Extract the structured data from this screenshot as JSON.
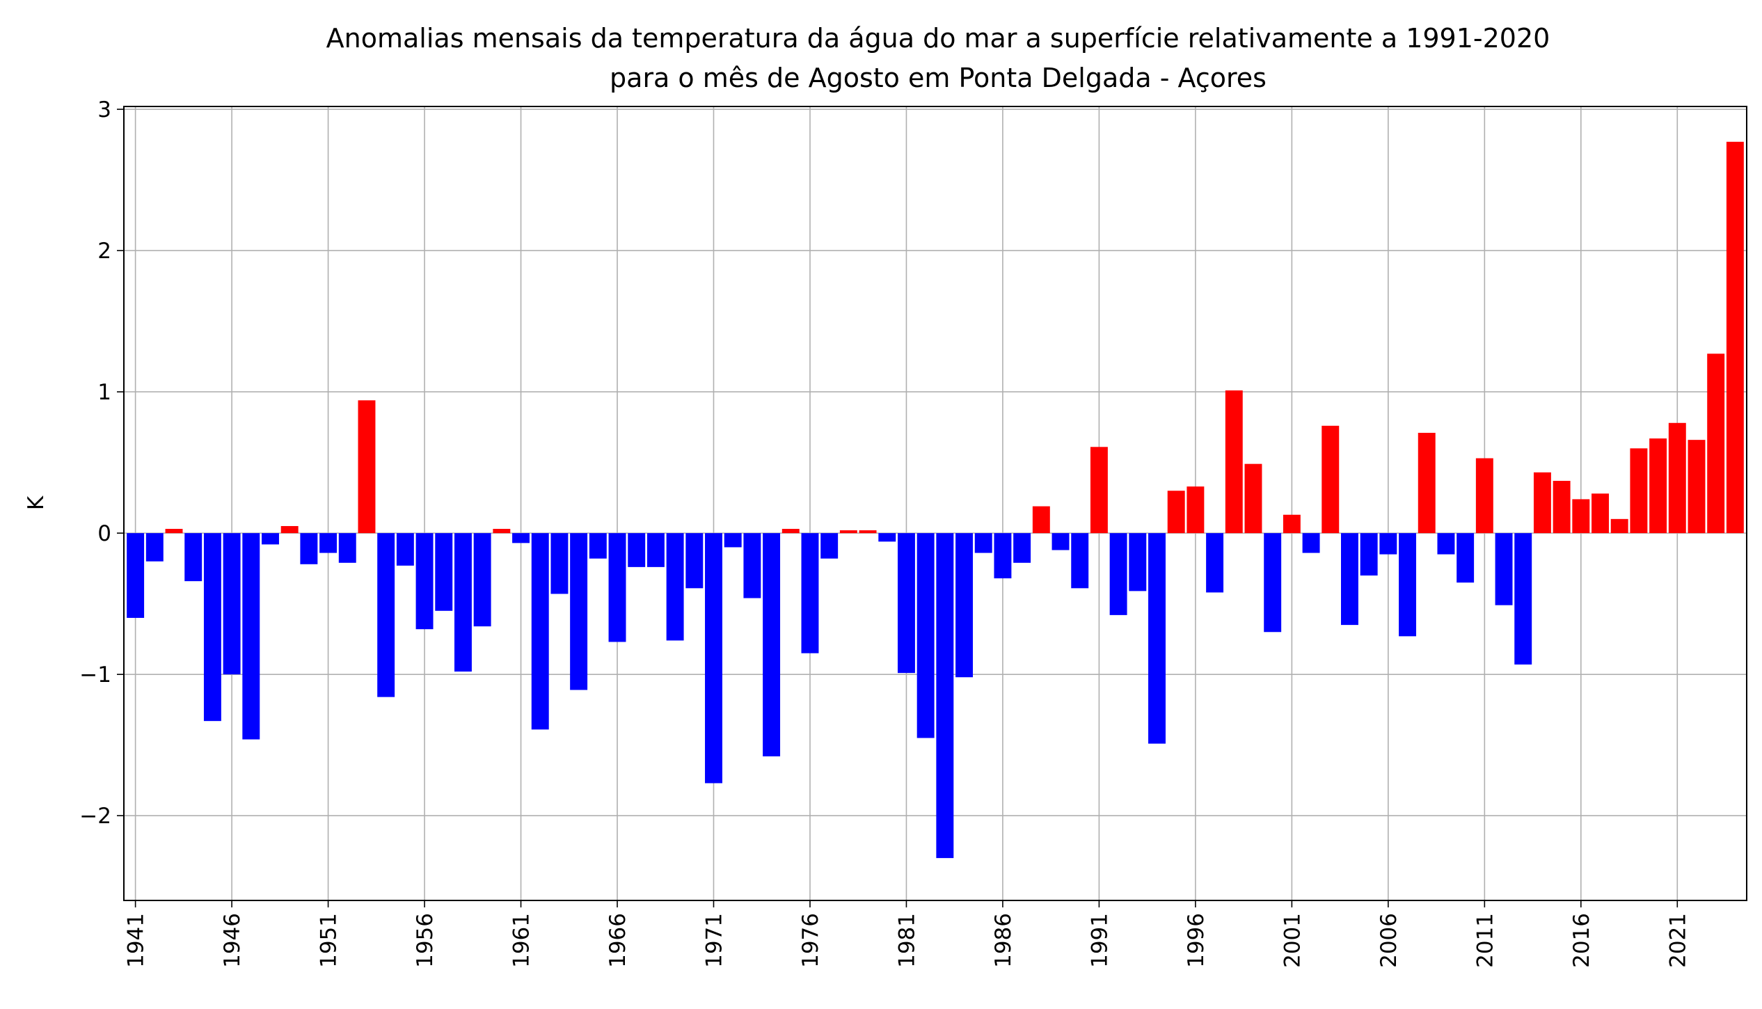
{
  "chart_data": {
    "type": "bar",
    "title": "Anomalias mensais da temperatura da água do mar a superfície relativamente a 1991-2020",
    "subtitle": "para o mês de Agosto em Ponta Delgada - Açores",
    "xlabel": "",
    "ylabel": "K",
    "ylim": [
      -2.6,
      3.02
    ],
    "xlim": [
      1940.4,
      2024.6
    ],
    "grid": true,
    "y_ticks": [
      -2,
      -1,
      0,
      1,
      2,
      3
    ],
    "y_tick_labels": [
      "−2",
      "−1",
      "0",
      "1",
      "2",
      "3"
    ],
    "x_ticks": [
      1941,
      1946,
      1951,
      1956,
      1961,
      1966,
      1971,
      1976,
      1981,
      1986,
      1991,
      1996,
      2001,
      2006,
      2011,
      2016,
      2021
    ],
    "x_tick_labels": [
      "1941",
      "1946",
      "1951",
      "1956",
      "1961",
      "1966",
      "1971",
      "1976",
      "1981",
      "1986",
      "1991",
      "1996",
      "2001",
      "2006",
      "2011",
      "2016",
      "2021"
    ],
    "positive_color": "#ff0000",
    "negative_color": "#0000ff",
    "years": [
      1941,
      1942,
      1943,
      1944,
      1945,
      1946,
      1947,
      1948,
      1949,
      1950,
      1951,
      1952,
      1953,
      1954,
      1955,
      1956,
      1957,
      1958,
      1959,
      1960,
      1961,
      1962,
      1963,
      1964,
      1965,
      1966,
      1967,
      1968,
      1969,
      1970,
      1971,
      1972,
      1973,
      1974,
      1975,
      1976,
      1977,
      1978,
      1979,
      1980,
      1981,
      1982,
      1983,
      1984,
      1985,
      1986,
      1987,
      1988,
      1989,
      1990,
      1991,
      1992,
      1993,
      1994,
      1995,
      1996,
      1997,
      1998,
      1999,
      2000,
      2001,
      2002,
      2003,
      2004,
      2005,
      2006,
      2007,
      2008,
      2009,
      2010,
      2011,
      2012,
      2013,
      2014,
      2015,
      2016,
      2017,
      2018,
      2019,
      2020,
      2021,
      2022,
      2023,
      2024
    ],
    "values": [
      -0.6,
      -0.2,
      0.03,
      -0.34,
      -1.33,
      -1.0,
      -1.46,
      -0.08,
      0.05,
      -0.22,
      -0.14,
      -0.21,
      0.94,
      -1.16,
      -0.23,
      -0.68,
      -0.55,
      -0.98,
      -0.66,
      0.03,
      -0.07,
      -1.39,
      -0.43,
      -1.11,
      -0.18,
      -0.77,
      -0.24,
      -0.24,
      -0.76,
      -0.39,
      -1.77,
      -0.1,
      -0.46,
      -1.58,
      0.03,
      -0.85,
      -0.18,
      0.02,
      0.02,
      -0.06,
      -0.99,
      -1.45,
      -2.3,
      -1.02,
      -0.14,
      -0.32,
      -0.21,
      0.19,
      -0.12,
      -0.39,
      0.61,
      -0.58,
      -0.41,
      -1.49,
      0.3,
      0.33,
      -0.42,
      1.01,
      0.49,
      -0.7,
      0.13,
      -0.14,
      0.76,
      -0.65,
      -0.3,
      -0.15,
      -0.73,
      0.71,
      -0.15,
      -0.35,
      0.53,
      -0.51,
      -0.93,
      0.43,
      0.37,
      0.24,
      0.28,
      0.1,
      0.6,
      0.67,
      0.78,
      0.66,
      1.27,
      2.77
    ]
  }
}
